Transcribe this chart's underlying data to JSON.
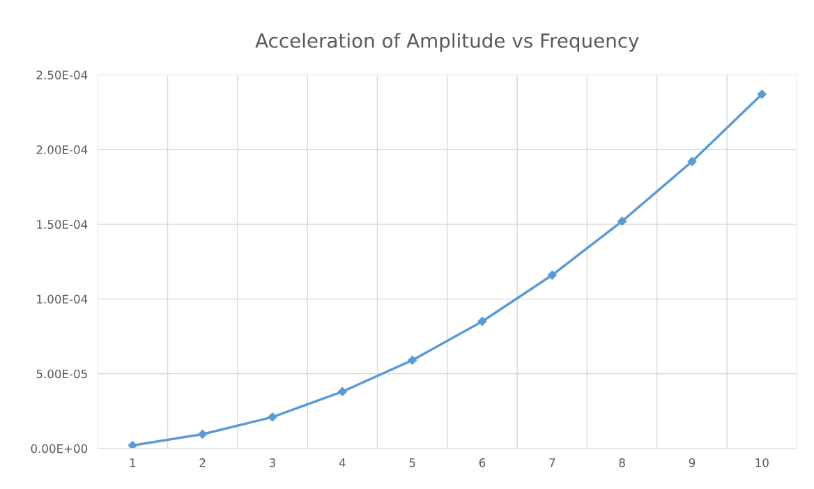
{
  "chart_data": {
    "type": "line",
    "title": "Acceleration of Amplitude vs Frequency",
    "categories": [
      "1",
      "2",
      "3",
      "4",
      "5",
      "6",
      "7",
      "8",
      "9",
      "10"
    ],
    "series": [
      {
        "color": "#5b9bd5",
        "values": [
          2e-06,
          9.5e-06,
          2.1e-05,
          3.8e-05,
          5.9e-05,
          8.5e-05,
          0.000116,
          0.000152,
          0.000192,
          0.000237
        ]
      }
    ],
    "ylim": [
      0,
      0.00025
    ],
    "yticks": [
      {
        "value": 0,
        "label": "0.00E+00"
      },
      {
        "value": 5e-05,
        "label": "5.00E-05"
      },
      {
        "value": 0.0001,
        "label": "1.00E-04"
      },
      {
        "value": 0.00015,
        "label": "1.50E-04"
      },
      {
        "value": 0.0002,
        "label": "2.00E-04"
      },
      {
        "value": 0.00025,
        "label": "2.50E-04"
      }
    ],
    "grid": true,
    "marker": "diamond",
    "line_style": "solid"
  }
}
